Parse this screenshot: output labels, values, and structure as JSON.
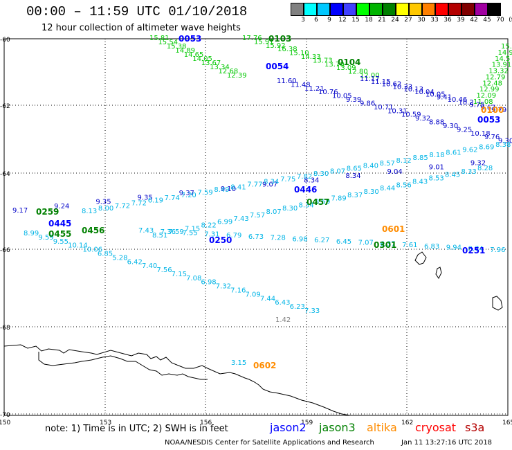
{
  "header": {
    "title": "00:00 – 11:59 UTC 01/10/2018",
    "subtitle": "12 hour collection of altimeter wave heights"
  },
  "colorbar": {
    "labels": [
      "3",
      "6",
      "9",
      "12",
      "15",
      "18",
      "21",
      "24",
      "27",
      "30",
      "33",
      "36",
      "39",
      "42",
      "45",
      "70",
      "(ft)"
    ],
    "colors": [
      "#808080",
      "#00ffff",
      "#00c8ff",
      "#0000ff",
      "#4040ff",
      "#00ff00",
      "#00b400",
      "#008000",
      "#ffff00",
      "#ffc800",
      "#ff8000",
      "#ff0000",
      "#b40000",
      "#800000",
      "#a000a0",
      "#000000"
    ]
  },
  "axes": {
    "lat_labels": [
      "-60",
      "-62",
      "-64",
      "-66",
      "-68",
      "-70"
    ],
    "lon_labels": [
      "150",
      "153",
      "156",
      "159",
      "162",
      "165"
    ]
  },
  "tracks": [
    {
      "color": "#00c800",
      "labels": [
        {
          "t": "15.81"
        },
        {
          "t": "15.54"
        },
        {
          "t": "15.38"
        },
        {
          "t": "14.89"
        },
        {
          "t": "14.65"
        },
        {
          "t": "14.05"
        },
        {
          "t": "13.67"
        },
        {
          "t": "13.34"
        },
        {
          "t": "12.68"
        },
        {
          "t": "12.39"
        }
      ]
    },
    {
      "color": "#00c800",
      "labels": [
        {
          "t": "17.76"
        },
        {
          "t": "15.91"
        },
        {
          "t": "15.92"
        },
        {
          "t": "16.38"
        },
        {
          "t": "15.10"
        },
        {
          "t": "14.33"
        },
        {
          "t": "13.73"
        },
        {
          "t": "13.70"
        },
        {
          "t": "13.09"
        },
        {
          "t": "12.80"
        },
        {
          "t": "12.00"
        }
      ]
    },
    {
      "color": "#00c800",
      "labels": [
        {
          "t": "15."
        },
        {
          "t": "14.9"
        },
        {
          "t": "14.5"
        },
        {
          "t": "13.91"
        },
        {
          "t": "13.32"
        },
        {
          "t": "12.79"
        },
        {
          "t": "12.48"
        },
        {
          "t": "12.99"
        },
        {
          "t": "12.09"
        },
        {
          "t": "11.08"
        }
      ]
    },
    {
      "color": "#0000c8",
      "labels": [
        {
          "t": "11.60"
        },
        {
          "t": "11.48"
        },
        {
          "t": "11.21"
        },
        {
          "t": "10.76"
        },
        {
          "t": "10.05"
        },
        {
          "t": "9.39"
        },
        {
          "t": "9.86"
        },
        {
          "t": "10.71"
        },
        {
          "t": "10.31"
        },
        {
          "t": "10.59"
        },
        {
          "t": "9.32"
        },
        {
          "t": "8.88"
        },
        {
          "t": "9.30"
        },
        {
          "t": "9.25"
        },
        {
          "t": "10.18"
        },
        {
          "t": "9.76"
        },
        {
          "t": "9.30"
        },
        {
          "t": "9.13"
        }
      ]
    },
    {
      "color": "#0000c8",
      "labels": [
        {
          "t": "11.17"
        },
        {
          "t": "11.15"
        },
        {
          "t": "10.62"
        },
        {
          "t": "10.33"
        },
        {
          "t": "10.13"
        },
        {
          "t": "10.04"
        },
        {
          "t": "10.05"
        },
        {
          "t": "9.41"
        },
        {
          "t": "10.46"
        },
        {
          "t": "10.2"
        },
        {
          "t": "9.75"
        },
        {
          "t": "9.67"
        },
        {
          "t": "9.79"
        }
      ]
    },
    {
      "color": "#00b4e6",
      "labels": [
        {
          "t": "8.99"
        },
        {
          "t": "9.59"
        },
        {
          "t": "9.55"
        },
        {
          "t": "10.14"
        },
        {
          "t": "10.06"
        },
        {
          "t": "6.85"
        },
        {
          "t": "5.28"
        },
        {
          "t": "6.42"
        },
        {
          "t": "7.40"
        },
        {
          "t": "7.56"
        },
        {
          "t": "7.15"
        },
        {
          "t": "7.08"
        },
        {
          "t": "6.98"
        },
        {
          "t": "7.32"
        },
        {
          "t": "7.16"
        },
        {
          "t": "7.09"
        },
        {
          "t": "7.44"
        },
        {
          "t": "6.43"
        },
        {
          "t": "6.23"
        },
        {
          "t": "7.33"
        }
      ]
    },
    {
      "color": "#0000c8",
      "labels": [
        {
          "t": "9.17"
        },
        {
          "t": "9.24"
        },
        {
          "t": "9.35"
        },
        {
          "t": "9.35"
        },
        {
          "t": "9.37"
        },
        {
          "t": "9.10"
        },
        {
          "t": "9.07"
        },
        {
          "t": "8.34"
        },
        {
          "t": "8.34"
        },
        {
          "t": "9.04"
        },
        {
          "t": "9.01"
        },
        {
          "t": "9.32"
        },
        {
          "t": "9.3"
        }
      ]
    },
    {
      "color": "#00b4e6",
      "labels": [
        {
          "t": "8.13"
        },
        {
          "t": "8.00"
        },
        {
          "t": "7.72"
        },
        {
          "t": "7.72"
        },
        {
          "t": "6.19"
        },
        {
          "t": "7.74"
        },
        {
          "t": "7.20"
        },
        {
          "t": "7.59"
        },
        {
          "t": "8.49"
        },
        {
          "t": "8.41"
        },
        {
          "t": "7.77"
        },
        {
          "t": "8.34"
        },
        {
          "t": "7.75"
        },
        {
          "t": "7.82"
        },
        {
          "t": "8.30"
        },
        {
          "t": "8.07"
        },
        {
          "t": "8.65"
        },
        {
          "t": "8.40"
        },
        {
          "t": "8.57"
        },
        {
          "t": "8.12"
        },
        {
          "t": "8.85"
        },
        {
          "t": "8.18"
        },
        {
          "t": "8.61"
        },
        {
          "t": "9.62"
        },
        {
          "t": "8.69"
        },
        {
          "t": "8.38"
        },
        {
          "t": "8.78"
        }
      ]
    },
    {
      "color": "#00b4e6",
      "labels": [
        {
          "t": "8.51"
        },
        {
          "t": "7.59"
        },
        {
          "t": "7.15"
        },
        {
          "t": "8.22"
        },
        {
          "t": "6.99"
        },
        {
          "t": "7.43"
        },
        {
          "t": "7.57"
        },
        {
          "t": "8.07"
        },
        {
          "t": "8.30"
        },
        {
          "t": "8.34"
        },
        {
          "t": "8.59"
        },
        {
          "t": "7.89"
        },
        {
          "t": "8.37"
        },
        {
          "t": "8.30"
        },
        {
          "t": "8.44"
        },
        {
          "t": "8.56"
        },
        {
          "t": "8.43"
        },
        {
          "t": "8.53"
        },
        {
          "t": "8.45"
        },
        {
          "t": "8.33"
        },
        {
          "t": "8.28"
        }
      ]
    },
    {
      "color": "#00b4e6",
      "labels": [
        {
          "t": "7.43"
        },
        {
          "t": "7.36"
        },
        {
          "t": "7.55"
        },
        {
          "t": "7.31"
        },
        {
          "t": "6.79"
        },
        {
          "t": "6.73"
        },
        {
          "t": "7.28"
        },
        {
          "t": "6.98"
        },
        {
          "t": "6.27"
        },
        {
          "t": "6.45"
        },
        {
          "t": "7.07"
        },
        {
          "t": "6.37"
        },
        {
          "t": "7.61"
        },
        {
          "t": "6.83"
        },
        {
          "t": "9.94"
        },
        {
          "t": "8.74"
        },
        {
          "t": "7.96"
        },
        {
          "t": "8.48"
        }
      ]
    },
    {
      "color": "#808080",
      "labels": [
        {
          "t": "1.42"
        }
      ]
    },
    {
      "color": "#00b4e6",
      "labels": [
        {
          "t": "3.15"
        }
      ]
    }
  ],
  "time_stamps": [
    {
      "t": "0053",
      "c": "#0000ff"
    },
    {
      "t": "0103",
      "c": "#008000"
    },
    {
      "t": "0054",
      "c": "#0000ff"
    },
    {
      "t": "0104",
      "c": "#008000"
    },
    {
      "t": "0100",
      "c": "#ff8c00"
    },
    {
      "t": "0053",
      "c": "#0000ff"
    },
    {
      "t": "0446",
      "c": "#0000ff"
    },
    {
      "t": "0457",
      "c": "#008000"
    },
    {
      "t": "0259",
      "c": "#008000"
    },
    {
      "t": "0445",
      "c": "#0000ff"
    },
    {
      "t": "0455",
      "c": "#008000"
    },
    {
      "t": "0456",
      "c": "#008000"
    },
    {
      "t": "0250",
      "c": "#0000ff"
    },
    {
      "t": "0601",
      "c": "#ff8c00"
    },
    {
      "t": "0301",
      "c": "#008000"
    },
    {
      "t": "0251",
      "c": "#0000ff"
    },
    {
      "t": "0602",
      "c": "#ff8c00"
    }
  ],
  "note": "note:  1) Time is in UTC;  2) SWH is in feet",
  "legend": [
    {
      "label": "jason2",
      "color": "#0000ff"
    },
    {
      "label": "jason3",
      "color": "#008000"
    },
    {
      "label": "altika",
      "color": "#ff8c00"
    },
    {
      "label": "cryosat",
      "color": "#ff0000"
    },
    {
      "label": "s3a",
      "color": "#b40000"
    }
  ],
  "footer": {
    "credit": "NOAA/NESDIS Center for Satellite Applications and Research",
    "timestamp": "Jan 11 13:27:16 UTC 2018"
  }
}
